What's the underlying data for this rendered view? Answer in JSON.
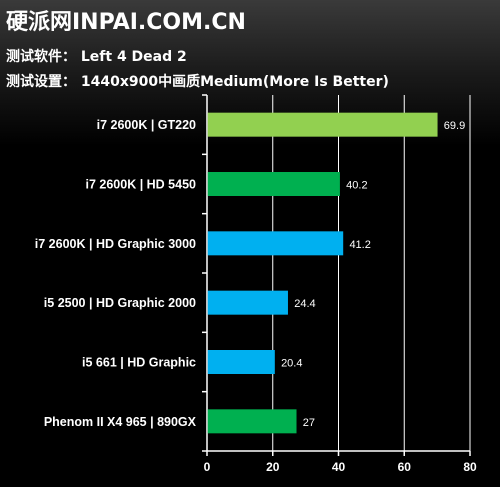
{
  "header": {
    "site_title": "硬派网INPAI.COM.CN",
    "software_line": "测试软件：  Left 4 Dead 2",
    "settings_line": "测试设置：  1440x900中画质Medium(More Is Better)"
  },
  "colors": {
    "lime": "#92d050",
    "green": "#00b050",
    "blue": "#00b0f0",
    "background": "#000000",
    "grid": "#ffffff"
  },
  "chart_data": {
    "type": "bar",
    "orientation": "horizontal",
    "title": "",
    "xlabel": "",
    "ylabel": "",
    "xlim": [
      0,
      80
    ],
    "x_ticks": [
      0,
      20,
      40,
      60,
      80
    ],
    "grid": true,
    "legend": "none",
    "categories": [
      "i7 2600K | GT220",
      "i7 2600K | HD 5450",
      "i7 2600K | HD Graphic 3000",
      "i5 2500 | HD Graphic 2000",
      "i5 661 | HD Graphic",
      "Phenom II X4 965 | 890GX"
    ],
    "values": [
      69.9,
      40.2,
      41.2,
      24.4,
      20.4,
      27
    ],
    "value_labels": [
      "69.9",
      "40.2",
      "41.2",
      "24.4",
      "20.4",
      "27"
    ],
    "bar_colors": [
      "#92d050",
      "#00b050",
      "#00b0f0",
      "#00b0f0",
      "#00b0f0",
      "#00b050"
    ]
  }
}
